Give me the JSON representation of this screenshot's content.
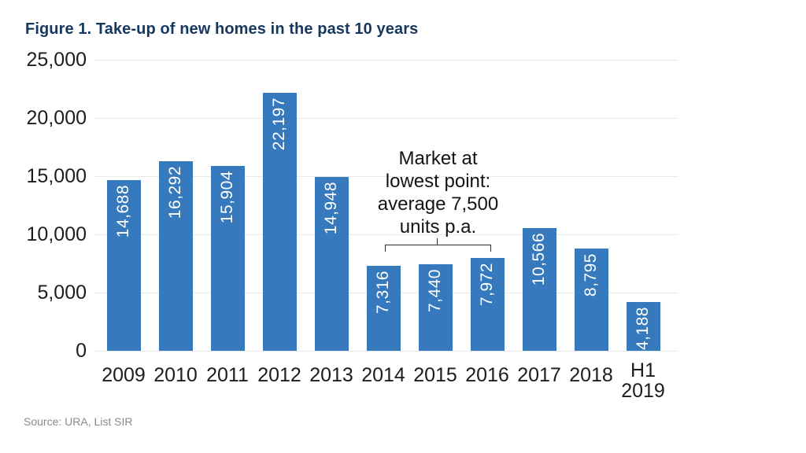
{
  "title": "Figure 1. Take-up of new homes in the past 10 years",
  "source_note": "Source: URA, List SIR",
  "annotation": {
    "text": "Market at\nlowest point:\naverage 7,500\nunits p.a."
  },
  "colors": {
    "bar": "#3779BD",
    "bar_label": "#ffffff",
    "title": "#16375F",
    "axis_text": "#1d1d1d",
    "gridline": "#e9e9e9",
    "bracket": "#2b2b2b",
    "source": "#8a8a8a"
  },
  "chart_data": {
    "type": "bar",
    "title": "Figure 1. Take-up of new homes in the past 10 years",
    "categories": [
      "2009",
      "2010",
      "2011",
      "2012",
      "2013",
      "2014",
      "2015",
      "2016",
      "2017",
      "2018",
      "H1\n2019"
    ],
    "values": [
      14688,
      16292,
      15904,
      22197,
      14948,
      7316,
      7440,
      7972,
      10566,
      8795,
      4188
    ],
    "value_labels": [
      "14,688",
      "16,292",
      "15,904",
      "22,197",
      "14,948",
      "7,316",
      "7,440",
      "7,972",
      "10,566",
      "8,795",
      "4,188"
    ],
    "xlabel": "",
    "ylabel": "",
    "ylim": [
      0,
      25000
    ],
    "ytick_interval": 5000,
    "yticks": [
      {
        "value": 0,
        "label": "0"
      },
      {
        "value": 5000,
        "label": "5,000"
      },
      {
        "value": 10000,
        "label": "10,000"
      },
      {
        "value": 15000,
        "label": "15,000"
      },
      {
        "value": 20000,
        "label": "20,000"
      },
      {
        "value": 25000,
        "label": "25,000"
      }
    ],
    "grid": true,
    "legend": false,
    "bar_value_labels_inside": true,
    "bar_value_labels_rotated": true,
    "annotation": {
      "text": "Market at\nlowest point:\naverage 7,500\nunits p.a.",
      "bracket_span_categories": [
        "2014",
        "2016"
      ]
    }
  }
}
